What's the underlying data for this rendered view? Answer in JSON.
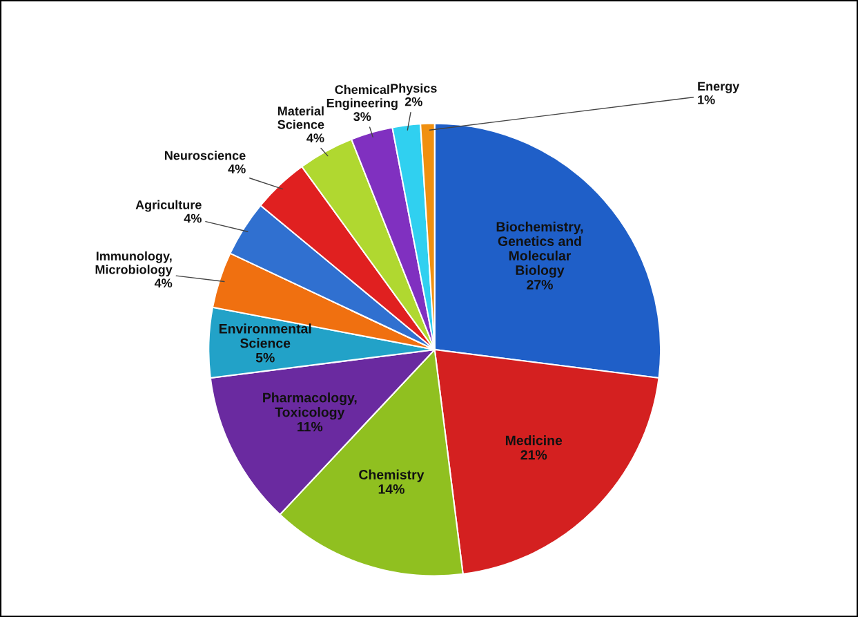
{
  "chart_data": {
    "type": "pie",
    "categories": [
      "Biochemistry,\nGenetics and\nMolecular\nBiology",
      "Medicine",
      "Chemistry",
      "Pharmacology,\nToxicology",
      "Environmental\nScience",
      "Immunology,\nMicrobiology",
      "Agriculture",
      "Neuroscience",
      "Material\nScience",
      "Chemical\nEngineering",
      "Physics",
      "Energy"
    ],
    "values": [
      27,
      21,
      14,
      11,
      5,
      4,
      4,
      4,
      4,
      3,
      2,
      1
    ],
    "value_labels": [
      "27%",
      "21%",
      "14%",
      "11%",
      "5%",
      "4%",
      "4%",
      "4%",
      "4%",
      "3%",
      "2%",
      "1%"
    ],
    "colors": [
      "#1f5fc8",
      "#d42020",
      "#90c020",
      "#6a2aa0",
      "#22a2c8",
      "#f07010",
      "#3070d0",
      "#e02020",
      "#b0d830",
      "#8030c0",
      "#30d0f0",
      "#f09010"
    ],
    "legend": false
  }
}
